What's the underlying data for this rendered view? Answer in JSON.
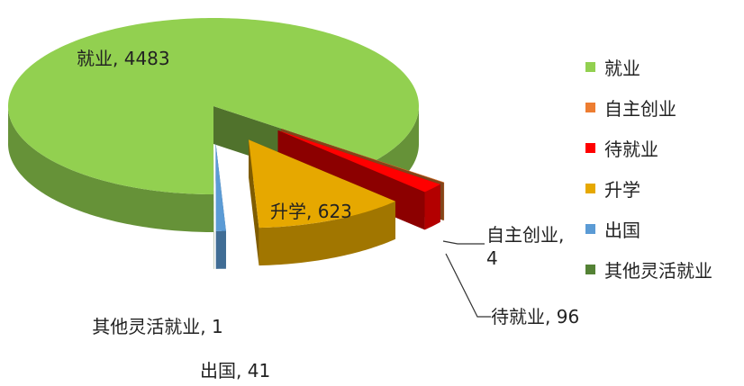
{
  "chart_data": {
    "type": "pie3d",
    "categories": [
      "就业",
      "自主创业",
      "待就业",
      "升学",
      "出国",
      "其他灵活就业"
    ],
    "values": [
      4483,
      4,
      96,
      623,
      41,
      1
    ],
    "value_labels": [
      "就业, 4483",
      "自主创业, 4",
      "待就业, 96",
      "升学, 623",
      "出国, 41",
      "其他灵活就业, 1"
    ],
    "colors": [
      "#92d050",
      "#ed7d31",
      "#ff0000",
      "#e6a800",
      "#5b9bd5",
      "#548235"
    ],
    "legend": "right"
  }
}
